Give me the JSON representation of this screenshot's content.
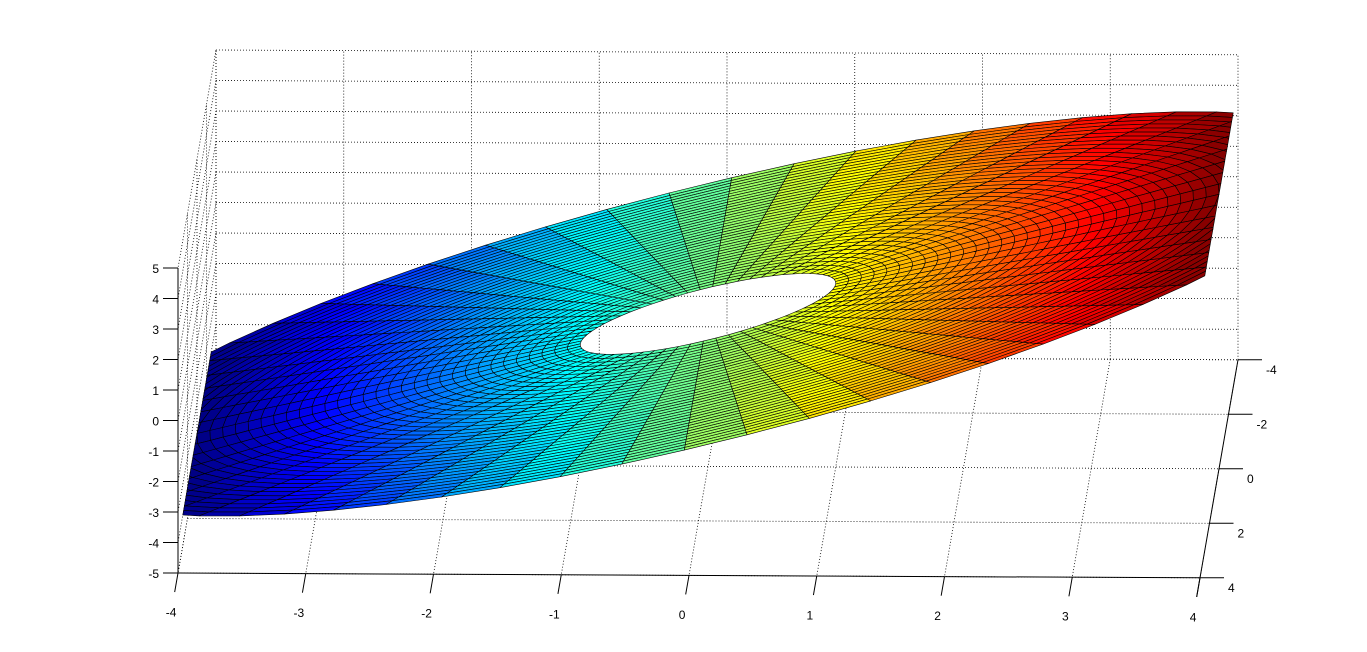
{
  "chart_data": {
    "type": "surface",
    "surface": {
      "shape": "polar annulus",
      "z_equals": "x",
      "r_range": [
        1,
        5
      ],
      "r_steps": 40,
      "theta_steps": 64,
      "edge_color": "#000000",
      "colormap": "jet",
      "color_range": [
        -4,
        4
      ]
    },
    "xlim": [
      -4,
      4
    ],
    "ylim": [
      -4,
      4
    ],
    "zlim": [
      -5,
      5
    ],
    "x_ticks": [
      -4,
      -3,
      -2,
      -1,
      0,
      1,
      2,
      3,
      4
    ],
    "y_ticks": [
      -4,
      -2,
      0,
      2,
      4
    ],
    "z_ticks": [
      -5,
      -4,
      -3,
      -2,
      -1,
      0,
      1,
      2,
      3,
      4,
      5
    ],
    "x_tick_labels": [
      "-4",
      "-3",
      "-2",
      "-1",
      "0",
      "1",
      "2",
      "3",
      "4"
    ],
    "y_tick_labels": [
      "-4",
      "-2",
      "0",
      "2",
      "4"
    ],
    "z_tick_labels": [
      "-5",
      "-4",
      "-3",
      "-2",
      "-1",
      "0",
      "1",
      "2",
      "3",
      "4",
      "5"
    ],
    "grid": true,
    "box": false,
    "title": "",
    "xlabel": "",
    "ylabel": "",
    "zlabel": ""
  }
}
